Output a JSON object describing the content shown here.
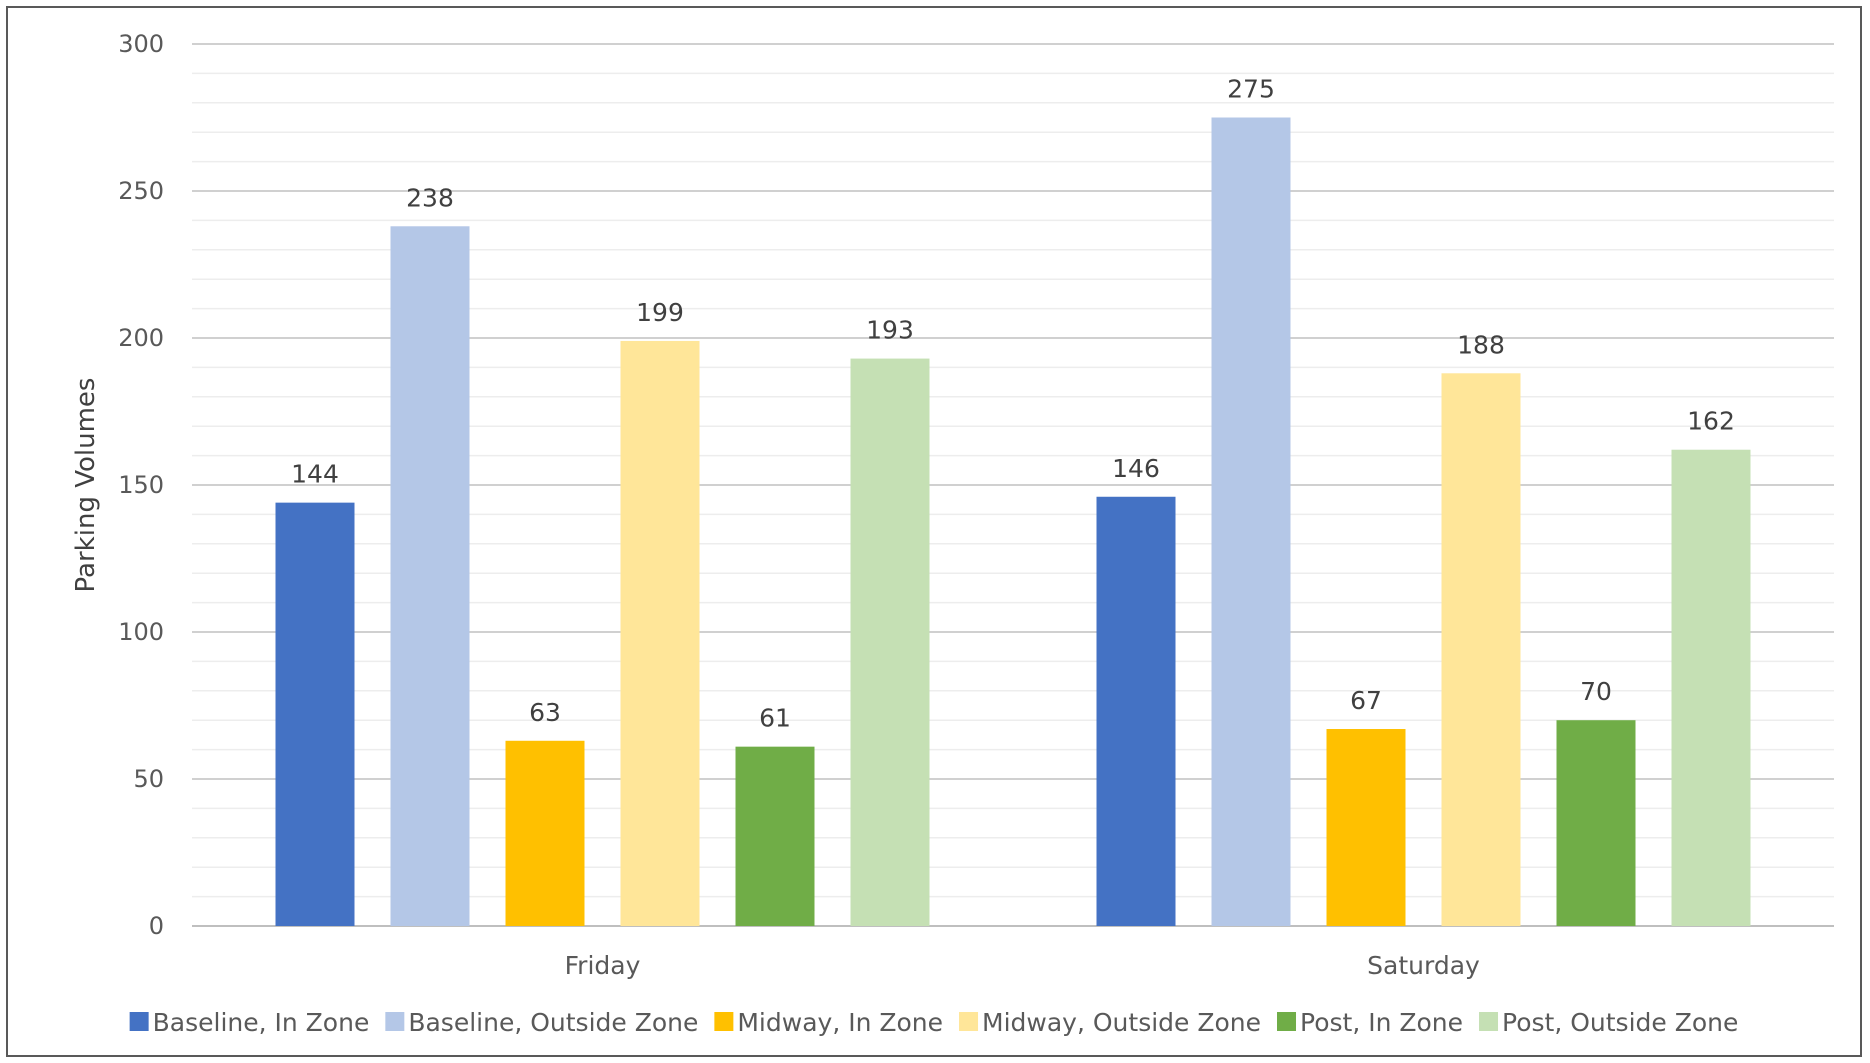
{
  "chart_data": {
    "type": "bar",
    "title": "",
    "xlabel": "",
    "ylabel": "Parking Volumes",
    "ylim": [
      0,
      300
    ],
    "yticks": [
      0,
      50,
      100,
      150,
      200,
      250,
      300
    ],
    "major_gridlines": true,
    "minor_gridlines": true,
    "legend_position": "bottom",
    "data_labels": true,
    "categories": [
      "Friday",
      "Saturday"
    ],
    "series": [
      {
        "name": "Baseline, In Zone",
        "color": "#4472C4",
        "values": [
          144,
          146
        ]
      },
      {
        "name": "Baseline, Outside Zone",
        "color": "#B4C7E7",
        "values": [
          238,
          275
        ]
      },
      {
        "name": "Midway, In Zone",
        "color": "#FFC000",
        "values": [
          63,
          67
        ]
      },
      {
        "name": "Midway, Outside Zone",
        "color": "#FFE699",
        "values": [
          199,
          188
        ]
      },
      {
        "name": "Post, In Zone",
        "color": "#70AD47",
        "values": [
          61,
          70
        ]
      },
      {
        "name": "Post, Outside Zone",
        "color": "#C5E0B4",
        "values": [
          193,
          162
        ]
      }
    ]
  }
}
